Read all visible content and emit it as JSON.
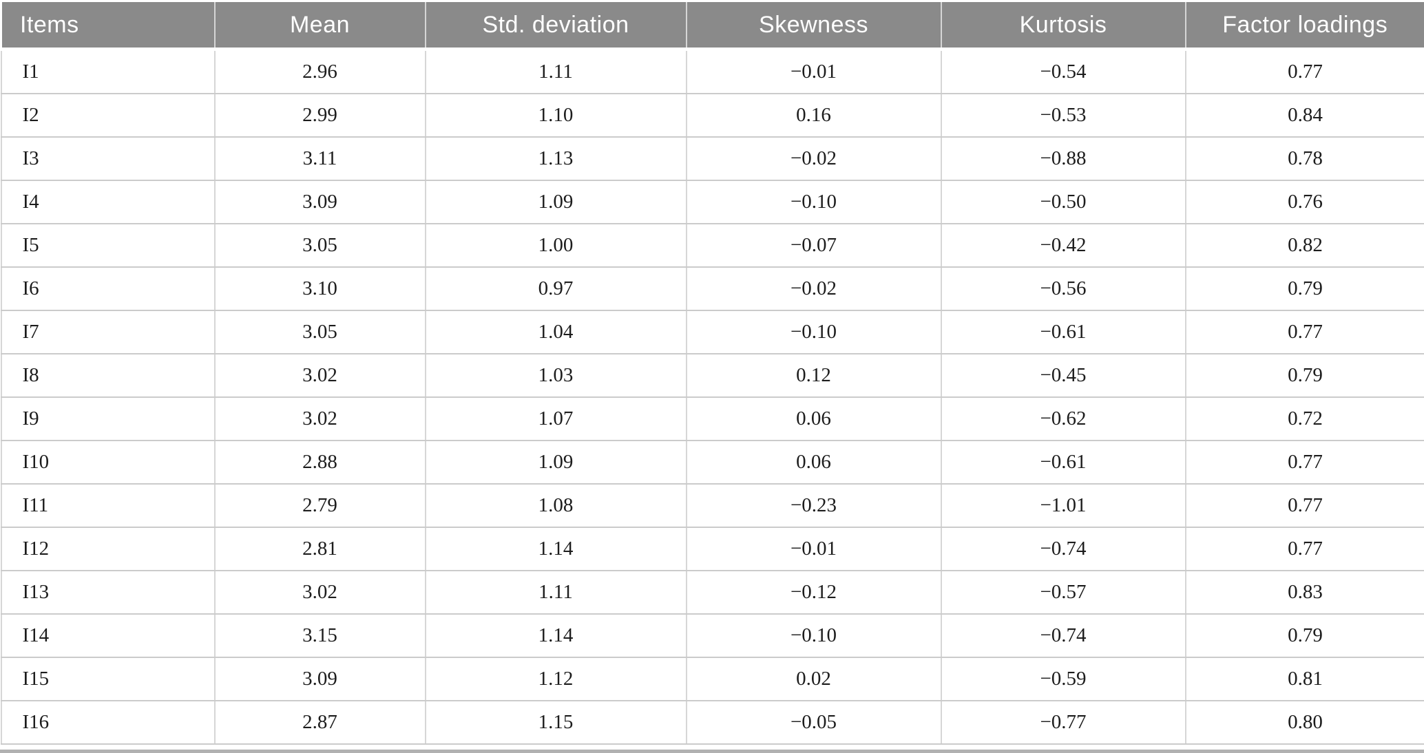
{
  "colors": {
    "header_bg": "#8a8a8a",
    "header_text": "#ffffff",
    "body_text": "#1c1c1c",
    "row_grid_line": "#cbcbcb",
    "column_grid_line": "#d6d6d6",
    "bottom_rule": "#b1b1b1"
  },
  "table": {
    "columns": [
      {
        "id": "items",
        "label": "Items"
      },
      {
        "id": "mean",
        "label": "Mean"
      },
      {
        "id": "sd",
        "label": "Std. deviation"
      },
      {
        "id": "skewness",
        "label": "Skewness"
      },
      {
        "id": "kurtosis",
        "label": "Kurtosis"
      },
      {
        "id": "loadings",
        "label": "Factor loadings"
      }
    ],
    "rows": [
      [
        "I1",
        "2.96",
        "1.11",
        "−0.01",
        "−0.54",
        "0.77"
      ],
      [
        "I2",
        "2.99",
        "1.10",
        "0.16",
        "−0.53",
        "0.84"
      ],
      [
        "I3",
        "3.11",
        "1.13",
        "−0.02",
        "−0.88",
        "0.78"
      ],
      [
        "I4",
        "3.09",
        "1.09",
        "−0.10",
        "−0.50",
        "0.76"
      ],
      [
        "I5",
        "3.05",
        "1.00",
        "−0.07",
        "−0.42",
        "0.82"
      ],
      [
        "I6",
        "3.10",
        "0.97",
        "−0.02",
        "−0.56",
        "0.79"
      ],
      [
        "I7",
        "3.05",
        "1.04",
        "−0.10",
        "−0.61",
        "0.77"
      ],
      [
        "I8",
        "3.02",
        "1.03",
        "0.12",
        "−0.45",
        "0.79"
      ],
      [
        "I9",
        "3.02",
        "1.07",
        "0.06",
        "−0.62",
        "0.72"
      ],
      [
        "I10",
        "2.88",
        "1.09",
        "0.06",
        "−0.61",
        "0.77"
      ],
      [
        "I11",
        "2.79",
        "1.08",
        "−0.23",
        "−1.01",
        "0.77"
      ],
      [
        "I12",
        "2.81",
        "1.14",
        "−0.01",
        "−0.74",
        "0.77"
      ],
      [
        "I13",
        "3.02",
        "1.11",
        "−0.12",
        "−0.57",
        "0.83"
      ],
      [
        "I14",
        "3.15",
        "1.14",
        "−0.10",
        "−0.74",
        "0.79"
      ],
      [
        "I15",
        "3.09",
        "1.12",
        "0.02",
        "−0.59",
        "0.81"
      ],
      [
        "I16",
        "2.87",
        "1.15",
        "−0.05",
        "−0.77",
        "0.80"
      ]
    ]
  },
  "chart_data": {
    "type": "table",
    "columns": [
      "Items",
      "Mean",
      "Std. deviation",
      "Skewness",
      "Kurtosis",
      "Factor loadings"
    ],
    "rows": [
      [
        "I1",
        2.96,
        1.11,
        -0.01,
        -0.54,
        0.77
      ],
      [
        "I2",
        2.99,
        1.1,
        0.16,
        -0.53,
        0.84
      ],
      [
        "I3",
        3.11,
        1.13,
        -0.02,
        -0.88,
        0.78
      ],
      [
        "I4",
        3.09,
        1.09,
        -0.1,
        -0.5,
        0.76
      ],
      [
        "I5",
        3.05,
        1.0,
        -0.07,
        -0.42,
        0.82
      ],
      [
        "I6",
        3.1,
        0.97,
        -0.02,
        -0.56,
        0.79
      ],
      [
        "I7",
        3.05,
        1.04,
        -0.1,
        -0.61,
        0.77
      ],
      [
        "I8",
        3.02,
        1.03,
        0.12,
        -0.45,
        0.79
      ],
      [
        "I9",
        3.02,
        1.07,
        0.06,
        -0.62,
        0.72
      ],
      [
        "I10",
        2.88,
        1.09,
        0.06,
        -0.61,
        0.77
      ],
      [
        "I11",
        2.79,
        1.08,
        -0.23,
        -1.01,
        0.77
      ],
      [
        "I12",
        2.81,
        1.14,
        -0.01,
        -0.74,
        0.77
      ],
      [
        "I13",
        3.02,
        1.11,
        -0.12,
        -0.57,
        0.83
      ],
      [
        "I14",
        3.15,
        1.14,
        -0.1,
        -0.74,
        0.79
      ],
      [
        "I15",
        3.09,
        1.12,
        0.02,
        -0.59,
        0.81
      ],
      [
        "I16",
        2.87,
        1.15,
        -0.05,
        -0.77,
        0.8
      ]
    ]
  }
}
